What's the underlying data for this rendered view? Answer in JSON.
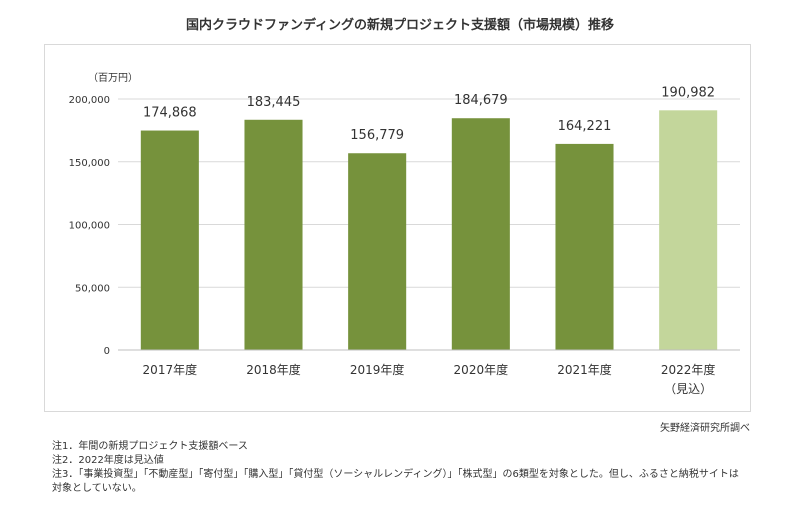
{
  "chart_data": {
    "type": "bar",
    "title": "国内クラウドファンディングの新規プロジェクト支援額（市場規模）推移",
    "ylabel": "（百万円）",
    "xlabel": "",
    "categories": [
      "2017年度",
      "2018年度",
      "2019年度",
      "2020年度",
      "2021年度",
      "2022年度"
    ],
    "category_sublabels": [
      "",
      "",
      "",
      "",
      "",
      "（見込）"
    ],
    "values": [
      174868,
      183445,
      156779,
      184679,
      164221,
      190982
    ],
    "value_labels": [
      "174,868",
      "183,445",
      "156,779",
      "184,679",
      "164,221",
      "190,982"
    ],
    "ylim": [
      0,
      200000
    ],
    "yticks": [
      0,
      50000,
      100000,
      150000,
      200000
    ],
    "ytick_labels": [
      "0",
      "50,000",
      "100,000",
      "150,000",
      "200,000"
    ],
    "grid": true,
    "legend": "none",
    "colors": {
      "actual": "#76923c",
      "forecast": "#c3d69b",
      "grid": "#d9d9d9",
      "axis": "#bfbfbf"
    },
    "forecast_flags": [
      false,
      false,
      false,
      false,
      false,
      true
    ]
  },
  "source": "矢野経済研究所調べ",
  "notes": [
    "注1．年間の新規プロジェクト支援額ベース",
    "注2．2022年度は見込値",
    "注3．「事業投資型」「不動産型」「寄付型」「購入型」「貸付型（ソーシャルレンディング）」「株式型」の6類型を対象とした。但し、ふるさと納税サイトは",
    "対象としていない。"
  ]
}
